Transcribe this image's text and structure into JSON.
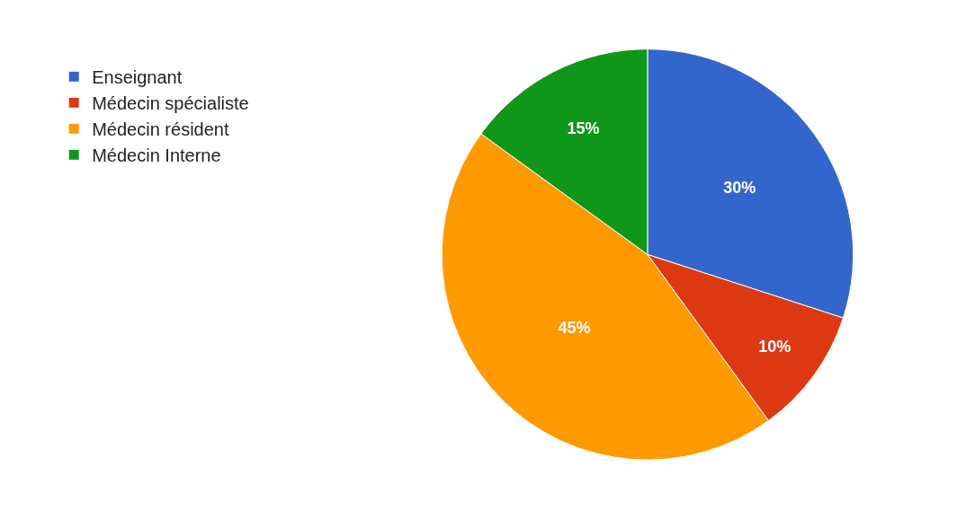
{
  "chart_data": {
    "type": "pie",
    "categories": [
      "Enseignant",
      "Médecin spécialiste",
      "Médecin résident",
      "Médecin Interne"
    ],
    "values": [
      30,
      10,
      45,
      15
    ],
    "colors": [
      "#3366cc",
      "#dc3912",
      "#ff9900",
      "#109618"
    ],
    "value_labels": [
      "30%",
      "10%",
      "45%",
      "15%"
    ],
    "legend": "top left"
  }
}
